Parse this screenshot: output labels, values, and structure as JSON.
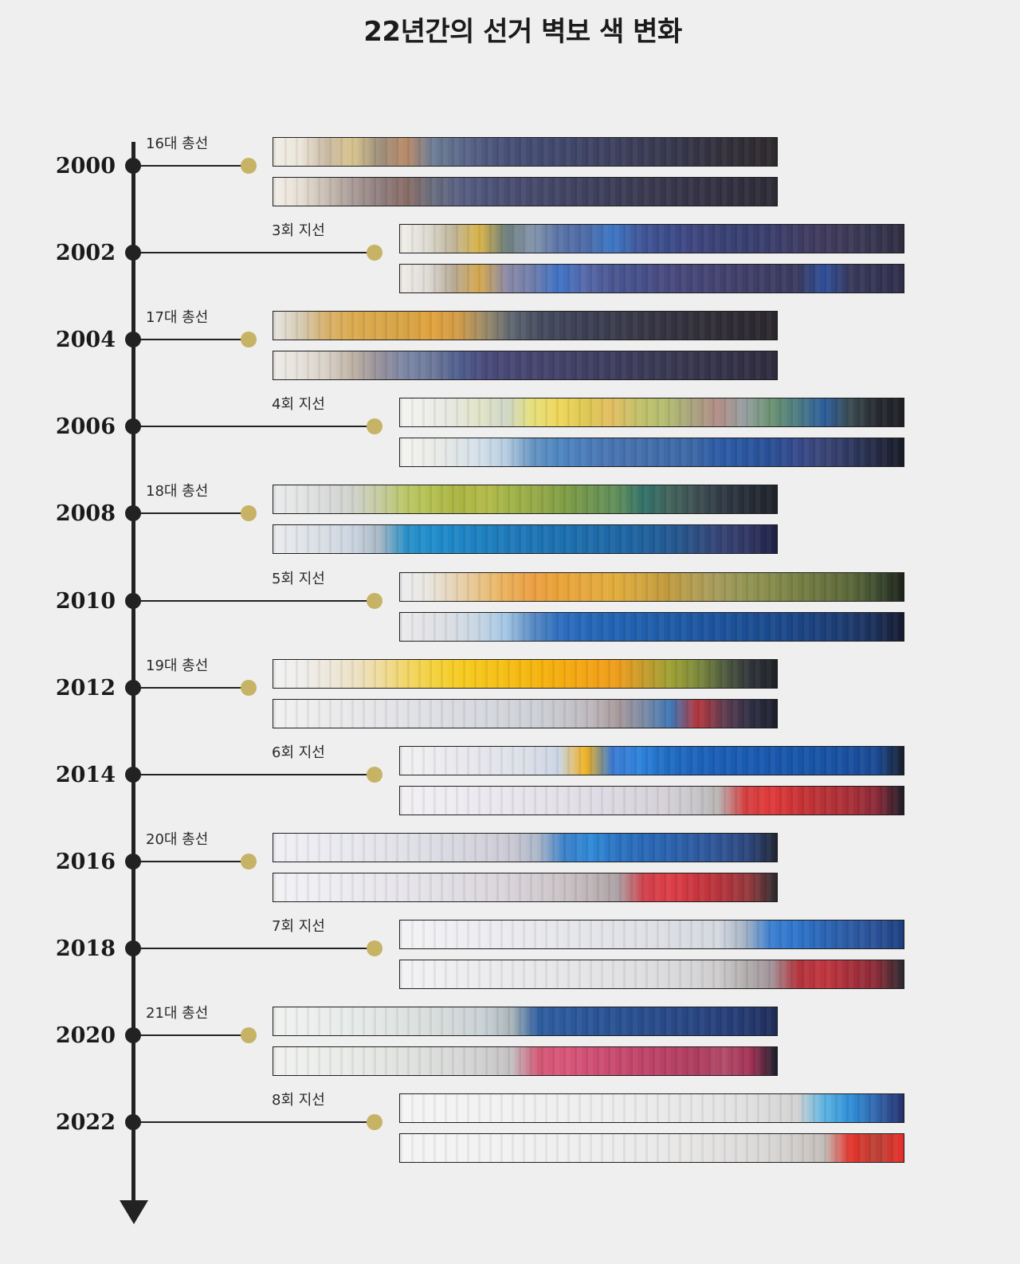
{
  "title": "22년간의 선거 벽보 색 변화",
  "accent_colors": {
    "axis": "#222222",
    "end_dot": "#c7b365",
    "background": "#efefef"
  },
  "timeline": [
    {
      "year": "2000",
      "election": "16대 총선",
      "kind": "general",
      "strips": [
        [
          "#f0ede6",
          "#ece6da",
          "#c8b9a2",
          "#d9c48e",
          "#9c8f7c",
          "#b98a67",
          "#6d7d95",
          "#5d6a8a",
          "#4e587e",
          "#474f76",
          "#434a70",
          "#40476a",
          "#3f4463",
          "#3d405d",
          "#3a3c55",
          "#37384d",
          "#353444",
          "#33303b",
          "#302c33",
          "#2e2a2e"
        ],
        [
          "#f2eee8",
          "#e7dfd4",
          "#c7bdb2",
          "#a99b97",
          "#8f7e80",
          "#8a6d66",
          "#6a6d7d",
          "#5a6083",
          "#4d5478",
          "#4a4d70",
          "#46486a",
          "#424463",
          "#3f405c",
          "#3c3c56",
          "#3a3950",
          "#37364b",
          "#353346",
          "#333141",
          "#302e3b",
          "#2d2b35"
        ]
      ]
    },
    {
      "year": "2002",
      "election": "3회 지선",
      "kind": "local",
      "strips": [
        [
          "#f2f0ea",
          "#dddbd2",
          "#c0b49a",
          "#d9b447",
          "#6c7d7d",
          "#8596ad",
          "#5a73a7",
          "#4d6aa6",
          "#3d78c6",
          "#41579a",
          "#3c4c8a",
          "#3f4680",
          "#3a4274",
          "#374070",
          "#3b3e6c",
          "#3e3c63",
          "#413a5c",
          "#3c3955",
          "#36354f",
          "#2e2c3f"
        ],
        [
          "#f0ede8",
          "#dedcd7",
          "#b7aa95",
          "#d6a84d",
          "#8c8aa6",
          "#6f7dab",
          "#3f72c6",
          "#5668a8",
          "#4a5691",
          "#45508a",
          "#494a7f",
          "#454677",
          "#434370",
          "#413f69",
          "#3d3c63",
          "#3a3a5e",
          "#2f4f9a",
          "#38385a",
          "#343454",
          "#2f2e4a"
        ]
      ]
    },
    {
      "year": "2004",
      "election": "17대 총선",
      "kind": "general",
      "strips": [
        [
          "#e8e5df",
          "#d5cbb4",
          "#d7b06a",
          "#dbab4e",
          "#d9a64a",
          "#d6a343",
          "#e1a23e",
          "#cf9b48",
          "#9a8a6a",
          "#5d6670",
          "#464c60",
          "#3f4458",
          "#3c3f52",
          "#3a3b4b",
          "#373646",
          "#353241",
          "#32303a",
          "#302c35",
          "#2d2931",
          "#2b272d"
        ],
        [
          "#eeece8",
          "#e5e1da",
          "#d7d0c6",
          "#beb2a4",
          "#96909a",
          "#7a86a5",
          "#6d7999",
          "#4f5e8f",
          "#4a4a7a",
          "#474774",
          "#44446d",
          "#424268",
          "#3f3f62",
          "#3d3c5c",
          "#3b3a57",
          "#393852",
          "#37354d",
          "#343248",
          "#322f43",
          "#2e2b3d"
        ]
      ]
    },
    {
      "year": "2006",
      "election": "4회 지선",
      "kind": "local",
      "strips": [
        [
          "#f4f4f2",
          "#eeeeea",
          "#e6e7df",
          "#e1e4c6",
          "#cfd7c8",
          "#e6e07a",
          "#efd65a",
          "#dec853",
          "#e2be62",
          "#c3c16a",
          "#b3bd6f",
          "#a8a37d",
          "#b28d87",
          "#96a0a1",
          "#6b9270",
          "#4d7b82",
          "#2c5e9b",
          "#3b4a50",
          "#262a30",
          "#1d1f24"
        ],
        [
          "#f4f4f2",
          "#edeee9",
          "#e1e6e6",
          "#d3e0ea",
          "#b6cde0",
          "#6694c2",
          "#4e86c1",
          "#4b7db9",
          "#4874b0",
          "#4570ab",
          "#3e6ba8",
          "#3d68a5",
          "#2c5ba4",
          "#2a56a0",
          "#294f94",
          "#36498b",
          "#3a4575",
          "#2e3860",
          "#252a44",
          "#171a26"
        ]
      ]
    },
    {
      "year": "2008",
      "election": "18대 총선",
      "kind": "general",
      "strips": [
        [
          "#eaebec",
          "#e3e4e4",
          "#d9dada",
          "#cfd2cb",
          "#c6cba0",
          "#bac766",
          "#b3c04f",
          "#aab441",
          "#b4bb4a",
          "#9fb247",
          "#95a848",
          "#7e9d45",
          "#6f9450",
          "#5f8d5b",
          "#31706a",
          "#43635a",
          "#3d4e52",
          "#2f3944",
          "#262c36",
          "#1e232b"
        ],
        [
          "#ebecee",
          "#e1e4e8",
          "#d7dde4",
          "#cad4df",
          "#a7b8c4",
          "#2a90c8",
          "#1f8dcc",
          "#1f86c6",
          "#1d7fbf",
          "#1f79b8",
          "#1d74b3",
          "#1b6fae",
          "#1f6ba9",
          "#1d66a4",
          "#1f619d",
          "#245992",
          "#2d4d81",
          "#354271",
          "#2f3560",
          "#1e1f45"
        ]
      ]
    },
    {
      "year": "2010",
      "election": "5회 지선",
      "kind": "local",
      "strips": [
        [
          "#ecedef",
          "#e8e6e0",
          "#e6d5b8",
          "#e8c488",
          "#eab15a",
          "#ec9f44",
          "#eaa337",
          "#e5a73f",
          "#e2ad3b",
          "#d4a640",
          "#c29a3c",
          "#b49d52",
          "#a49b5b",
          "#939553",
          "#868b4b",
          "#777f44",
          "#6a733f",
          "#5a6839",
          "#3e4d31",
          "#1c2218"
        ],
        [
          "#ebebed",
          "#e3e3e7",
          "#d9dde3",
          "#c5d5e3",
          "#a3c6e4",
          "#5a8bc4",
          "#2f6ebf",
          "#2767b8",
          "#2363b3",
          "#2060ae",
          "#1f5ca8",
          "#1e57a2",
          "#1c539c",
          "#1b4f95",
          "#1b4a8d",
          "#1b4584",
          "#1c407a",
          "#1d3a6d",
          "#1b2f57",
          "#14192d"
        ]
      ]
    },
    {
      "year": "2012",
      "election": "19대 총선",
      "kind": "general",
      "strips": [
        [
          "#f2f2f2",
          "#efeeec",
          "#ede8dd",
          "#ece2c6",
          "#f0dc9e",
          "#f2d667",
          "#f4d13e",
          "#f6cc23",
          "#f5c419",
          "#f5bc13",
          "#f5b40e",
          "#f4ab10",
          "#f3a315",
          "#ed9c1c",
          "#c49c2d",
          "#9ea034",
          "#7d8a3b",
          "#4f5c3f",
          "#30333a",
          "#1e2126"
        ],
        [
          "#f1f1f1",
          "#eeeeee",
          "#ebebec",
          "#e8e8ea",
          "#e5e5e8",
          "#e1e2e6",
          "#dddfe4",
          "#d9dbe1",
          "#d5d8de",
          "#d1d3d9",
          "#cccfd5",
          "#c5c5cb",
          "#bdb7bb",
          "#a8999a",
          "#7b8aa5",
          "#3d76b4",
          "#b6363c",
          "#5f3c50",
          "#2f2f44",
          "#1c1f2d"
        ]
      ]
    },
    {
      "year": "2014",
      "election": "6회 지선",
      "kind": "local",
      "strips": [
        [
          "#f2f0f2",
          "#eeedf0",
          "#eae9ee",
          "#e6e6ec",
          "#e1e3ea",
          "#d9dde7",
          "#cad5e5",
          "#f0b120",
          "#3b7ad2",
          "#2f83dc",
          "#206dc4",
          "#1e64bc",
          "#1a5eb6",
          "#1a5bb2",
          "#1957ad",
          "#1855a9",
          "#1853a4",
          "#1a4f9e",
          "#1b4992",
          "#181e2c"
        ],
        [
          "#f2f0f3",
          "#f0edf2",
          "#eeebf1",
          "#ebe8ef",
          "#e9e6ed",
          "#e6e3ea",
          "#e3e0e8",
          "#e0dde5",
          "#ddd9e2",
          "#d9d5dd",
          "#d4d0d6",
          "#cac7cd",
          "#b9b5b3",
          "#d44142",
          "#e03a3a",
          "#c93335",
          "#b63236",
          "#a82f38",
          "#8a2a38",
          "#1c1d27"
        ]
      ]
    },
    {
      "year": "2016",
      "election": "20대 총선",
      "kind": "general",
      "strips": [
        [
          "#f0f0f5",
          "#ededf2",
          "#eaeaf0",
          "#e7e7ee",
          "#e4e4ea",
          "#e0e0e7",
          "#dcdde4",
          "#d7d7df",
          "#d2d1db",
          "#c9c8d2",
          "#aab6c8",
          "#3b80c9",
          "#2f8ad6",
          "#2c72c1",
          "#2a68b6",
          "#2b62ad",
          "#2e5aa0",
          "#2f5392",
          "#2d4478",
          "#202634"
        ],
        [
          "#f2f1f4",
          "#f0eff3",
          "#eeedf1",
          "#ebeaef",
          "#e9e7ec",
          "#e6e4ea",
          "#e3e0e6",
          "#dfdde2",
          "#dcd8de",
          "#d7d2d8",
          "#d1cbd0",
          "#c9c1c5",
          "#bdb4b6",
          "#aca1a4",
          "#d1404b",
          "#dc3e47",
          "#c8353e",
          "#b2343c",
          "#8f3a3d",
          "#2a2b2e"
        ]
      ]
    },
    {
      "year": "2018",
      "election": "7회 지선",
      "kind": "local",
      "strips": [
        [
          "#f3f3f6",
          "#f1f1f4",
          "#efeff3",
          "#ededf1",
          "#ebebef",
          "#e9e9ed",
          "#e6e7eb",
          "#e4e5e9",
          "#e2e3e8",
          "#dfe1e6",
          "#dcdee4",
          "#d8dbe1",
          "#d4d8df",
          "#a6b4c6",
          "#3a7fd0",
          "#2f75cb",
          "#2b65b4",
          "#2c5aa3",
          "#2b5096",
          "#1d3f7d"
        ],
        [
          "#f2f2f5",
          "#f0f0f3",
          "#eeeef1",
          "#ececef",
          "#eaeaed",
          "#e8e8eb",
          "#e6e6e9",
          "#e4e4e7",
          "#e2e1e4",
          "#dfdee1",
          "#dbdadd",
          "#d6d5d7",
          "#cdcbcc",
          "#b3afae",
          "#a2959a",
          "#b3333c",
          "#c0363f",
          "#a62f3a",
          "#882c38",
          "#2a2a30"
        ]
      ]
    },
    {
      "year": "2020",
      "election": "21대 총선",
      "kind": "general",
      "strips": [
        [
          "#f0f2f0",
          "#edf0ee",
          "#eaedeb",
          "#e6eae8",
          "#e2e6e4",
          "#dde2e0",
          "#d8dddc",
          "#d1d7d8",
          "#c8d0d4",
          "#a8b4b8",
          "#2e5da0",
          "#2c599c",
          "#2b5597",
          "#2a5192",
          "#294d8c",
          "#294987",
          "#284582",
          "#273f7a",
          "#24386e",
          "#1e2c55"
        ],
        [
          "#f1f2ef",
          "#eef0ed",
          "#ebedea",
          "#e8eae7",
          "#e4e6e3",
          "#e0e2df",
          "#dbdddb",
          "#d6d7d6",
          "#cfcfcf",
          "#c3bfc0",
          "#d25874",
          "#d95679",
          "#cf4f73",
          "#c6496d",
          "#bf446a",
          "#b74165",
          "#ad3d60",
          "#b24b6a",
          "#a33256",
          "#1a1f2d"
        ]
      ]
    },
    {
      "year": "2022",
      "election": "8회 지선",
      "kind": "local",
      "strips": [
        [
          "#f5f5f5",
          "#f4f4f4",
          "#f3f3f3",
          "#f2f2f2",
          "#f1f1f1",
          "#f0f0f0",
          "#efefef",
          "#eeeeee",
          "#ededed",
          "#ebebeb",
          "#e9e9e9",
          "#e7e7e7",
          "#e4e4e4",
          "#e0e0e0",
          "#dadada",
          "#d2d2d2",
          "#5cb4e2",
          "#2f8ed6",
          "#3264aa",
          "#24306e"
        ],
        [
          "#f5f5f5",
          "#f4f4f4",
          "#f3f3f3",
          "#f2f2f2",
          "#f1f1f1",
          "#f0f0f0",
          "#efefef",
          "#eeeeee",
          "#edecec",
          "#ebeaea",
          "#e9e8e8",
          "#e6e5e4",
          "#e2e1e0",
          "#dedcdb",
          "#d8d6d4",
          "#d0ccc9",
          "#c3bdb9",
          "#e5342b",
          "#b94136",
          "#ea2f2a"
        ]
      ]
    }
  ]
}
